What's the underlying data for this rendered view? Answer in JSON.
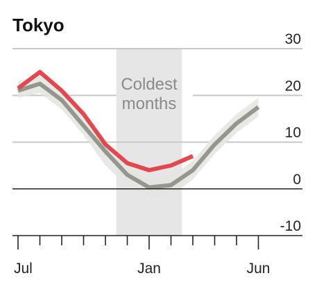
{
  "chart_data": {
    "type": "line",
    "title": "Tokyo",
    "xlabel": "",
    "ylabel": "",
    "ylim": [
      -10,
      30
    ],
    "y_ticks": [
      30,
      20,
      10,
      0,
      -10
    ],
    "y_tick_labels": [
      "30",
      "20",
      "10",
      "0",
      "-10"
    ],
    "x_tick_count": 12,
    "x_labels": [
      {
        "label": "Jul",
        "index": 0
      },
      {
        "label": "Jan",
        "index": 6
      },
      {
        "label": "Jun",
        "index": 11
      }
    ],
    "grid": true,
    "shaded_region": {
      "start": 4.5,
      "end": 7.5,
      "label_lines": [
        "Coldest",
        "months"
      ]
    },
    "series": [
      {
        "x": [
          0,
          1,
          2,
          3,
          4,
          5,
          6,
          7,
          8
        ],
        "values": [
          21.5,
          25,
          21,
          16,
          9.5,
          5.5,
          4,
          5,
          7
        ],
        "style": "highlight"
      },
      {
        "x": [
          0,
          1,
          2,
          3,
          4,
          5,
          6,
          7,
          8,
          9,
          10,
          11
        ],
        "values": [
          21,
          22.5,
          19,
          13.5,
          8,
          3,
          0.3,
          0.8,
          4,
          9.5,
          14,
          17.5
        ],
        "band_upper": [
          23,
          24.5,
          21,
          15.5,
          10,
          4.5,
          2,
          2.5,
          6,
          11.5,
          16,
          19.5
        ],
        "band_lower": [
          19.5,
          20.5,
          17,
          11.5,
          5,
          0.5,
          -2,
          -1.5,
          2,
          7.5,
          12,
          15.5
        ],
        "style": "average"
      }
    ],
    "colors": {
      "highlight": "#e34850",
      "average": "#94978d",
      "band": "#e4e4df",
      "shade": "#e6e6e6",
      "grid": "#c8c8c8",
      "zero": "#222222"
    }
  }
}
